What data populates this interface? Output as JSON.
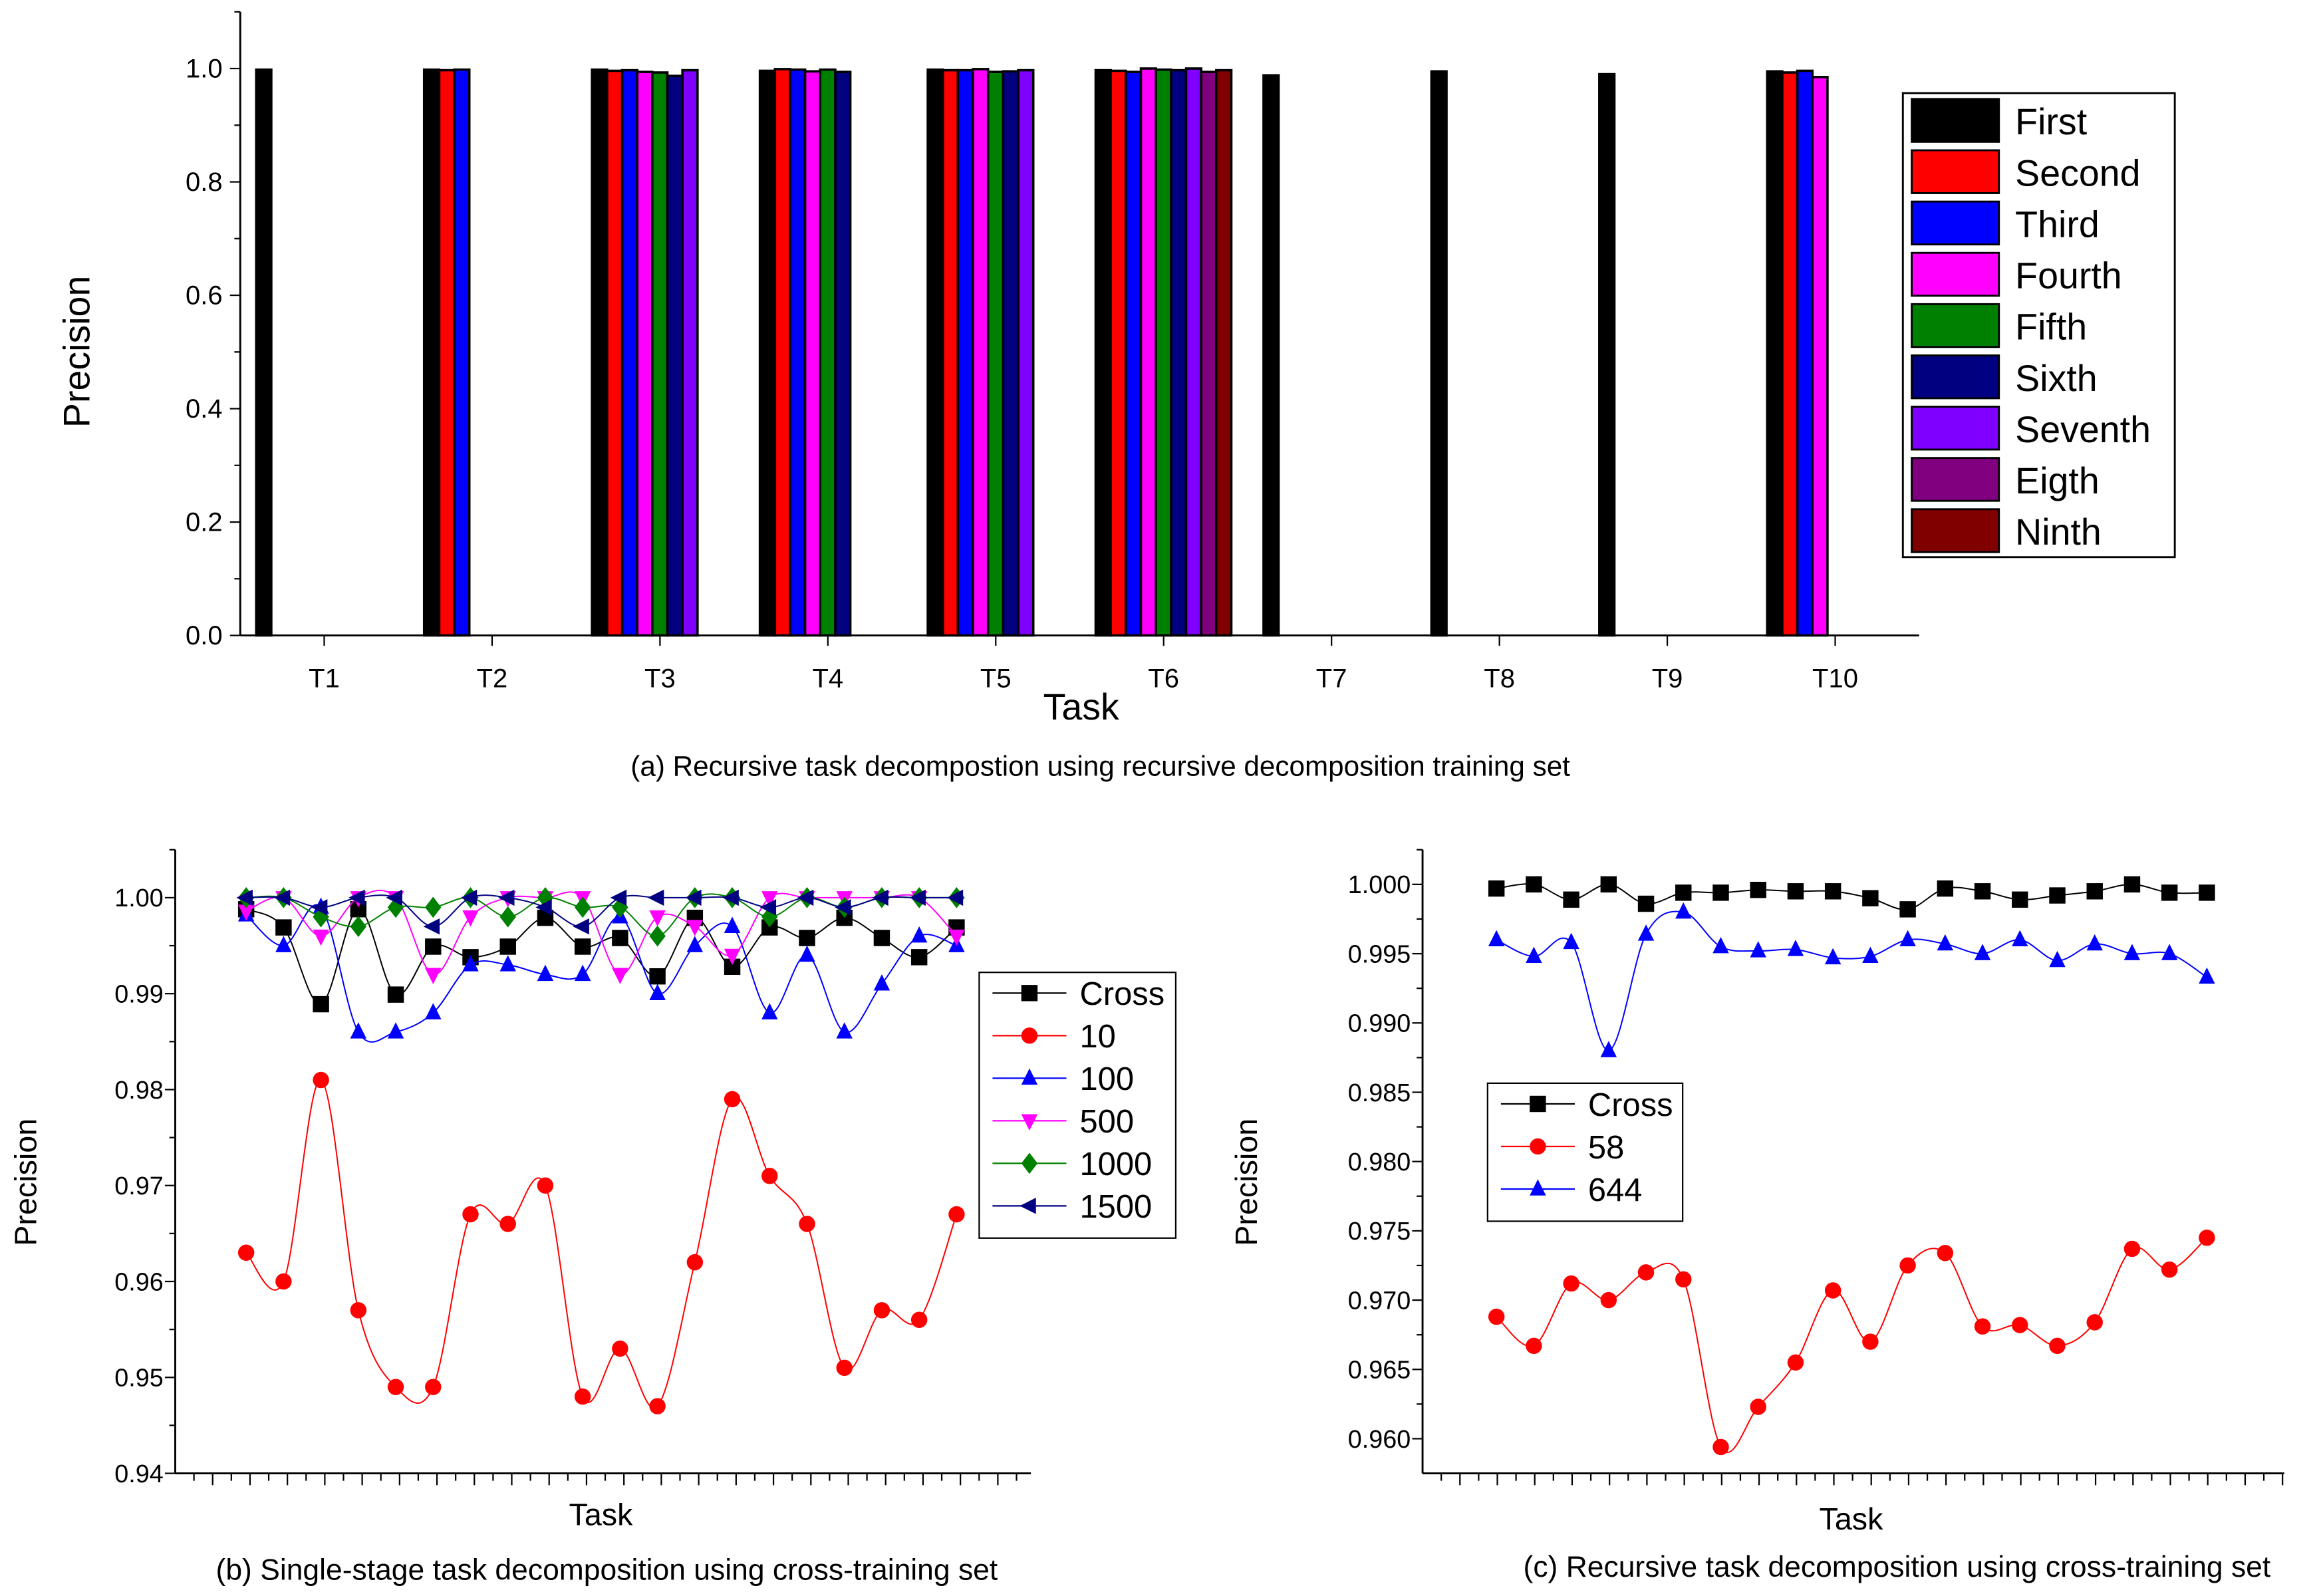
{
  "chart_data": [
    {
      "type": "bar",
      "title": "(a)  Recursive task decompostion using recursive decomposition training set",
      "xlabel": "Task",
      "ylabel": "Precision",
      "ylim": [
        0,
        1.1
      ],
      "yticks": [
        "0.0",
        "0.2",
        "0.4",
        "0.6",
        "0.8",
        "1.0"
      ],
      "categories": [
        "T1",
        "T2",
        "T3",
        "T4",
        "T5",
        "T6",
        "T7",
        "T8",
        "T9",
        "T10"
      ],
      "legend_position": "right",
      "series_names": [
        "First",
        "Second",
        "Third",
        "Fourth",
        "Fifth",
        "Sixth",
        "Seventh",
        "Eigth",
        "Ninth"
      ],
      "series_colors": [
        "#000000",
        "#ff0000",
        "#0000ff",
        "#ff00ff",
        "#008000",
        "#000080",
        "#8000ff",
        "#800080",
        "#800000"
      ],
      "values": [
        [
          0.998
        ],
        [
          0.998,
          0.997,
          0.998
        ],
        [
          0.998,
          0.996,
          0.997,
          0.994,
          0.993,
          0.987,
          0.997
        ],
        [
          0.996,
          0.999,
          0.998,
          0.995,
          0.998,
          0.994
        ],
        [
          0.998,
          0.997,
          0.997,
          0.999,
          0.994,
          0.995,
          0.997
        ],
        [
          0.997,
          0.996,
          0.994,
          1.0,
          0.998,
          0.997,
          1.0,
          0.994,
          0.997
        ],
        [
          0.988
        ],
        [
          0.995
        ],
        [
          0.99
        ],
        [
          0.995,
          0.993,
          0.996,
          0.985
        ]
      ]
    },
    {
      "type": "line",
      "title": "(b)  Single-stage task decomposition using cross-training set",
      "xlabel": "Task",
      "ylabel": "Precision",
      "ylim": [
        0.94,
        1.005
      ],
      "yticks": [
        "0.94",
        "0.95",
        "0.96",
        "0.97",
        "0.98",
        "0.99",
        "1.00"
      ],
      "legend_position": "right",
      "series": [
        {
          "name": "Cross",
          "color": "#000000",
          "marker": "square",
          "values": [
            0.9988,
            0.9969,
            0.9889,
            0.9988,
            0.9899,
            0.9949,
            0.9938,
            0.9949,
            0.9979,
            0.9949,
            0.9958,
            0.9918,
            0.9979,
            0.9928,
            0.9969,
            0.9958,
            0.9979,
            0.9958,
            0.9938,
            0.9969
          ]
        },
        {
          "name": "10",
          "color": "#ff0000",
          "marker": "circle",
          "values": [
            0.963,
            0.96,
            0.981,
            0.957,
            0.949,
            0.949,
            0.967,
            0.966,
            0.97,
            0.948,
            0.953,
            0.947,
            0.962,
            0.979,
            0.971,
            0.966,
            0.951,
            0.957,
            0.956,
            0.967
          ]
        },
        {
          "name": "100",
          "color": "#0000ff",
          "marker": "triangle-up",
          "values": [
            0.9982,
            0.995,
            0.999,
            0.986,
            0.986,
            0.988,
            0.993,
            0.993,
            0.992,
            0.992,
            0.998,
            0.99,
            0.995,
            0.997,
            0.988,
            0.994,
            0.986,
            0.991,
            0.996,
            0.995
          ]
        },
        {
          "name": "500",
          "color": "#ff00ff",
          "marker": "triangle-down",
          "values": [
            0.9986,
            1.0,
            0.996,
            1.0,
            1.0,
            0.992,
            0.998,
            1.0,
            1.0,
            1.0,
            0.992,
            0.998,
            0.997,
            0.994,
            1.0,
            1.0,
            1.0,
            1.0,
            1.0,
            0.996
          ]
        },
        {
          "name": "1000",
          "color": "#008000",
          "marker": "diamond",
          "values": [
            1.0,
            1.0,
            0.998,
            0.997,
            0.999,
            0.999,
            1.0,
            0.998,
            1.0,
            0.999,
            0.999,
            0.996,
            1.0,
            1.0,
            0.998,
            1.0,
            0.999,
            1.0,
            1.0,
            1.0
          ]
        },
        {
          "name": "1500",
          "color": "#000080",
          "marker": "triangle-left",
          "values": [
            1.0,
            1.0,
            0.999,
            1.0,
            1.0,
            0.997,
            1.0,
            1.0,
            0.999,
            0.997,
            1.0,
            1.0,
            1.0,
            1.0,
            0.999,
            1.0,
            0.999,
            1.0,
            1.0,
            1.0
          ]
        }
      ]
    },
    {
      "type": "line",
      "title": "(c)  Recursive task decomposition using cross-training set",
      "xlabel": "Task",
      "ylabel": "Precision",
      "ylim": [
        0.9575,
        1.0035
      ],
      "yticks": [
        "0.960",
        "0.965",
        "0.970",
        "0.975",
        "0.980",
        "0.985",
        "0.990",
        "0.995",
        "1.000"
      ],
      "legend_position": "left",
      "series": [
        {
          "name": "Cross",
          "color": "#000000",
          "marker": "square",
          "values": [
            0.9997,
            1.0,
            0.9989,
            1.0,
            0.9986,
            0.9994,
            0.9994,
            0.9996,
            0.9995,
            0.9995,
            0.999,
            0.9982,
            0.9997,
            0.9995,
            0.9989,
            0.9992,
            0.9995,
            1.0,
            0.9994,
            0.9994
          ]
        },
        {
          "name": "58",
          "color": "#ff0000",
          "marker": "circle",
          "values": [
            0.9688,
            0.9667,
            0.9712,
            0.97,
            0.972,
            0.9715,
            0.9594,
            0.9623,
            0.9655,
            0.9707,
            0.967,
            0.9725,
            0.9734,
            0.9681,
            0.9682,
            0.9667,
            0.9684,
            0.9737,
            0.9722,
            0.9745
          ]
        },
        {
          "name": "644",
          "color": "#0000ff",
          "marker": "triangle-up",
          "values": [
            0.996,
            0.9948,
            0.9958,
            0.988,
            0.9964,
            0.998,
            0.9955,
            0.9952,
            0.9953,
            0.9947,
            0.9948,
            0.996,
            0.9957,
            0.995,
            0.996,
            0.9945,
            0.9957,
            0.995,
            0.995,
            0.9933
          ]
        }
      ]
    }
  ]
}
